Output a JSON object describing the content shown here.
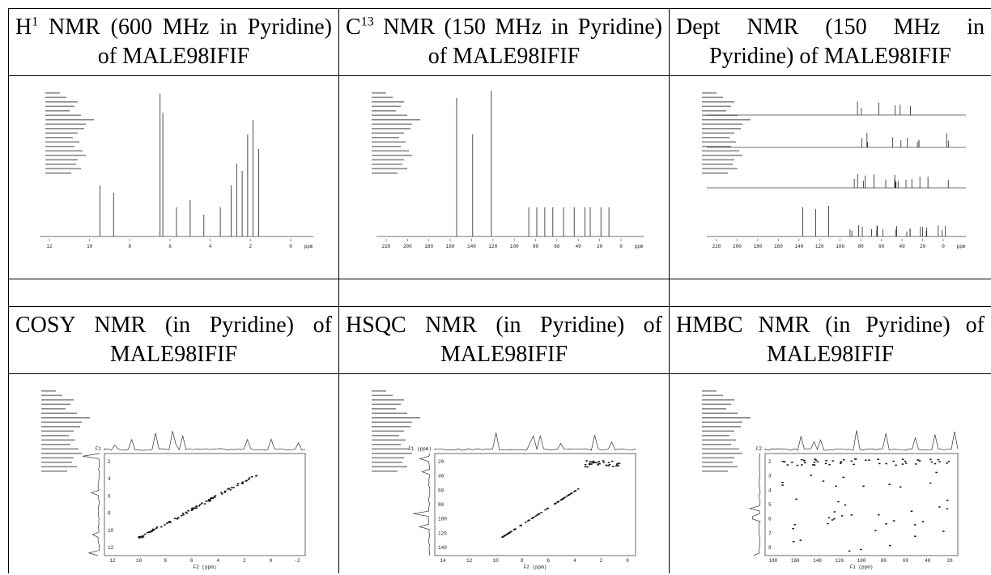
{
  "table": {
    "cells": [
      {
        "title": [
          "H",
          "1",
          " NMR (600 MHz in Pyridine) of MALE98IFIF"
        ],
        "xticks": [
          "12",
          "10",
          "8",
          "6",
          "4",
          "2",
          "0"
        ],
        "xunit": "ppm"
      },
      {
        "title": [
          "C",
          "13",
          " NMR (150 MHz in Pyridine) of MALE98IFIF"
        ],
        "xticks": [
          "220",
          "200",
          "180",
          "160",
          "140",
          "120",
          "100",
          "80",
          "60",
          "40",
          "20",
          "0"
        ],
        "xunit": "ppm"
      },
      {
        "title": [
          "Dept NMR (150 MHz in Pyridine) of MALE98IFIF"
        ],
        "xticks": [
          "220",
          "200",
          "180",
          "160",
          "140",
          "120",
          "100",
          "80",
          "60",
          "40",
          "20",
          "0"
        ],
        "xunit": "ppm"
      },
      {
        "title": [
          "COSY NMR (in Pyridine) of MALE98IFIF"
        ],
        "xticks": [
          "12",
          "10",
          "8",
          "6",
          "4",
          "2",
          "0",
          "-2"
        ],
        "xunit": "F2 (ppm)",
        "yunit": "F1",
        "yticks": [
          "2",
          "4",
          "6",
          "8",
          "10",
          "12"
        ]
      },
      {
        "title": [
          "HSQC NMR (in Pyridine) of MALE98IFIF"
        ],
        "xticks": [
          "14",
          "12",
          "10",
          "8",
          "6",
          "4",
          "2",
          "0"
        ],
        "xunit": "F2 (ppm)",
        "yunit": "F1 (ppm)",
        "yticks": [
          "20",
          "40",
          "60",
          "80",
          "100",
          "120",
          "140"
        ]
      },
      {
        "title": [
          "HMBC NMR (in Pyridine) of MALE98IFIF"
        ],
        "xticks": [
          "180",
          "160",
          "140",
          "120",
          "100",
          "80",
          "60",
          "40",
          "20"
        ],
        "xunit": "F1 (ppm)",
        "yunit": "F2",
        "yticks": [
          "2",
          "3",
          "4",
          "5",
          "6",
          "7",
          "8"
        ]
      }
    ]
  }
}
